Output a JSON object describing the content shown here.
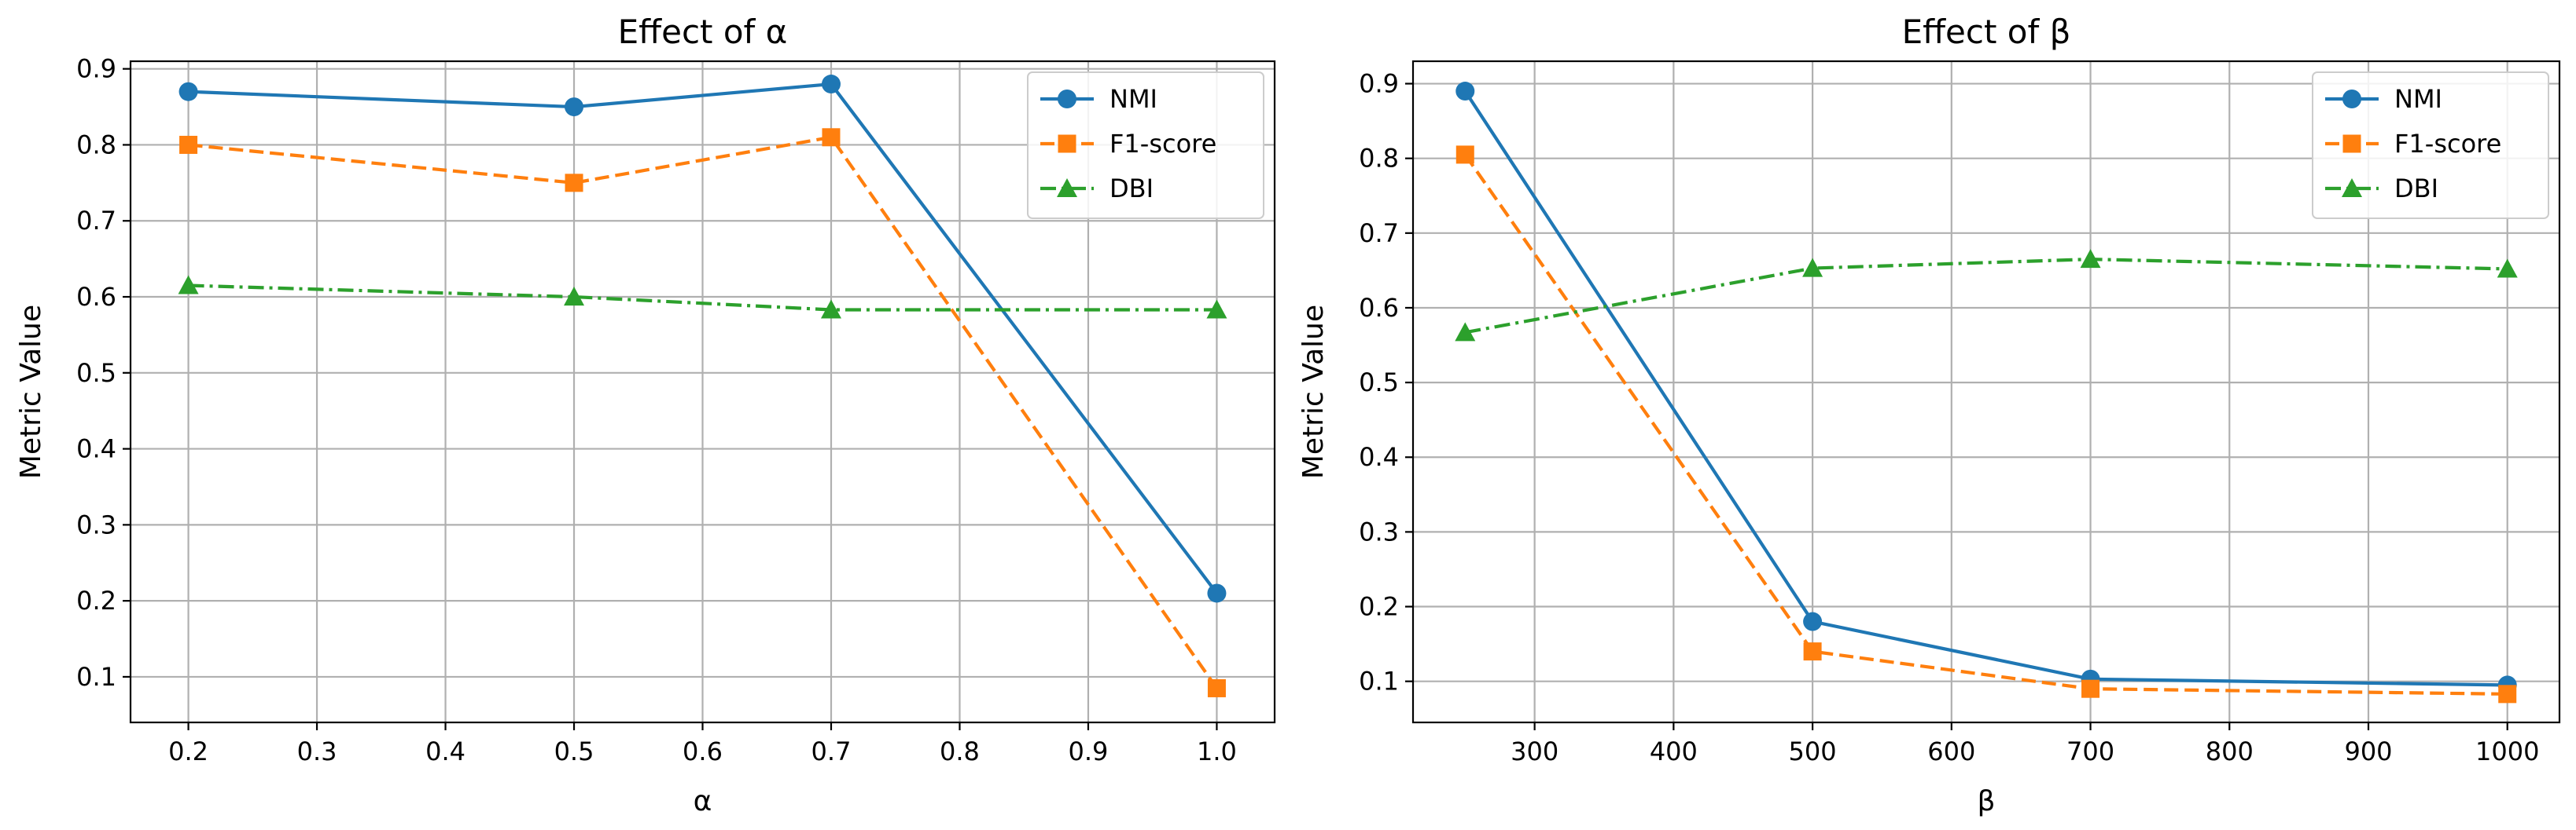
{
  "chart_data": [
    {
      "type": "line",
      "title": "Effect of α",
      "xlabel": "α",
      "ylabel": "Metric Value",
      "xlim": [
        0.155,
        1.045
      ],
      "ylim": [
        0.04,
        0.91
      ],
      "xticks": [
        0.2,
        0.3,
        0.4,
        0.5,
        0.6,
        0.7,
        0.8,
        0.9,
        1.0
      ],
      "xtick_labels": [
        "0.2",
        "0.3",
        "0.4",
        "0.5",
        "0.6",
        "0.7",
        "0.8",
        "0.9",
        "1.0"
      ],
      "yticks": [
        0.1,
        0.2,
        0.3,
        0.4,
        0.5,
        0.6,
        0.7,
        0.8,
        0.9
      ],
      "ytick_labels": [
        "0.1",
        "0.2",
        "0.3",
        "0.4",
        "0.5",
        "0.6",
        "0.7",
        "0.8",
        "0.9"
      ],
      "grid": true,
      "legend_position": "top-right",
      "x": [
        0.2,
        0.5,
        0.7,
        1.0
      ],
      "series": [
        {
          "name": "NMI",
          "values": [
            0.87,
            0.85,
            0.88,
            0.21
          ],
          "color": "#1f77b4",
          "marker": "circle",
          "linestyle": "solid"
        },
        {
          "name": "F1-score",
          "values": [
            0.8,
            0.75,
            0.81,
            0.085
          ],
          "color": "#ff7f0e",
          "marker": "square",
          "linestyle": "dashed"
        },
        {
          "name": "DBI",
          "values": [
            0.615,
            0.6,
            0.583,
            0.583
          ],
          "color": "#2ca02c",
          "marker": "triangle",
          "linestyle": "dashdot"
        }
      ]
    },
    {
      "type": "line",
      "title": "Effect of β",
      "xlabel": "β",
      "ylabel": "Metric Value",
      "xlim": [
        212.5,
        1037.5
      ],
      "ylim": [
        0.045,
        0.93
      ],
      "xticks": [
        300,
        400,
        500,
        600,
        700,
        800,
        900,
        1000
      ],
      "xtick_labels": [
        "300",
        "400",
        "500",
        "600",
        "700",
        "800",
        "900",
        "1000"
      ],
      "yticks": [
        0.1,
        0.2,
        0.3,
        0.4,
        0.5,
        0.6,
        0.7,
        0.8,
        0.9
      ],
      "ytick_labels": [
        "0.1",
        "0.2",
        "0.3",
        "0.4",
        "0.5",
        "0.6",
        "0.7",
        "0.8",
        "0.9"
      ],
      "grid": true,
      "legend_position": "top-right",
      "x": [
        250,
        500,
        700,
        1000
      ],
      "series": [
        {
          "name": "NMI",
          "values": [
            0.89,
            0.18,
            0.103,
            0.095
          ],
          "color": "#1f77b4",
          "marker": "circle",
          "linestyle": "solid"
        },
        {
          "name": "F1-score",
          "values": [
            0.805,
            0.14,
            0.09,
            0.083
          ],
          "color": "#ff7f0e",
          "marker": "square",
          "linestyle": "dashed"
        },
        {
          "name": "DBI",
          "values": [
            0.567,
            0.653,
            0.665,
            0.652
          ],
          "color": "#2ca02c",
          "marker": "triangle",
          "linestyle": "dashdot"
        }
      ]
    }
  ]
}
